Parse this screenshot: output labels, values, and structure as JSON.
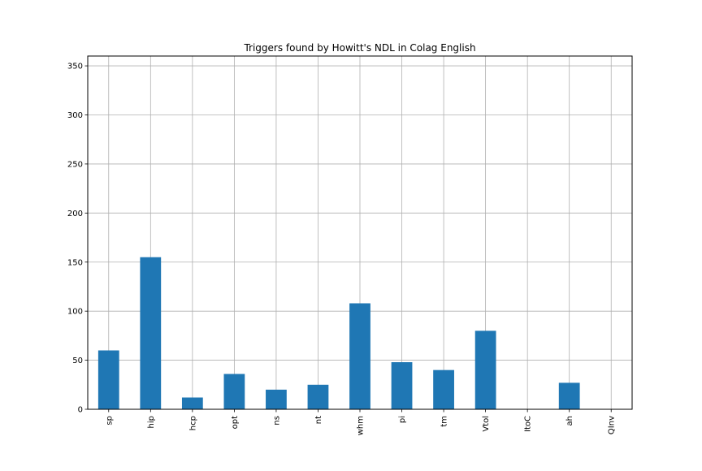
{
  "chart_data": {
    "type": "bar",
    "title": "Triggers found by Howitt's NDL in Colag English",
    "xlabel": "",
    "ylabel": "",
    "categories": [
      "sp",
      "hip",
      "hcp",
      "opt",
      "ns",
      "nt",
      "whm",
      "pi",
      "tm",
      "Vtol",
      "ItoC",
      "ah",
      "QInv"
    ],
    "values": [
      60,
      155,
      12,
      36,
      20,
      25,
      108,
      48,
      40,
      80,
      0,
      27,
      0
    ],
    "ylim": [
      0,
      360
    ],
    "yticks": [
      0,
      50,
      100,
      150,
      200,
      250,
      300,
      350
    ],
    "grid": true,
    "legend": "none",
    "bar_color": "#1f77b4",
    "grid_color": "#b0b0b0"
  }
}
